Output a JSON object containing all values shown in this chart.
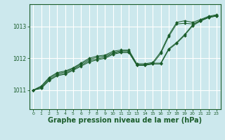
{
  "background_color": "#cce8ed",
  "grid_color": "#ffffff",
  "line_color": "#1a5c2a",
  "marker_color": "#1a5c2a",
  "xlabel": "Graphe pression niveau de la mer (hPa)",
  "xlabel_fontsize": 7,
  "xlim": [
    -0.5,
    23.5
  ],
  "ylim": [
    1010.4,
    1013.7
  ],
  "yticks": [
    1011,
    1012,
    1013
  ],
  "xticks": [
    0,
    1,
    2,
    3,
    4,
    5,
    6,
    7,
    8,
    9,
    10,
    11,
    12,
    13,
    14,
    15,
    16,
    17,
    18,
    19,
    20,
    21,
    22,
    23
  ],
  "series": [
    [
      1011.0,
      1011.05,
      1011.3,
      1011.45,
      1011.5,
      1011.62,
      1011.75,
      1011.88,
      1011.95,
      1012.0,
      1012.12,
      1012.18,
      1012.18,
      1011.78,
      1011.78,
      1011.82,
      1011.82,
      1012.27,
      1012.47,
      1012.72,
      1013.02,
      1013.17,
      1013.28,
      1013.33
    ],
    [
      1011.0,
      1011.08,
      1011.33,
      1011.48,
      1011.53,
      1011.65,
      1011.78,
      1011.92,
      1011.98,
      1012.03,
      1012.15,
      1012.2,
      1012.2,
      1011.8,
      1011.8,
      1011.85,
      1011.85,
      1012.3,
      1012.5,
      1012.75,
      1013.05,
      1013.2,
      1013.3,
      1013.35
    ],
    [
      1011.0,
      1011.1,
      1011.37,
      1011.52,
      1011.57,
      1011.68,
      1011.82,
      1011.96,
      1012.03,
      1012.07,
      1012.18,
      1012.23,
      1012.23,
      1011.78,
      1011.78,
      1011.83,
      1012.15,
      1012.68,
      1013.08,
      1013.1,
      1013.08,
      1013.18,
      1013.28,
      1013.33
    ],
    [
      1011.0,
      1011.13,
      1011.4,
      1011.55,
      1011.6,
      1011.7,
      1011.85,
      1012.0,
      1012.07,
      1012.1,
      1012.22,
      1012.26,
      1012.26,
      1011.83,
      1011.83,
      1011.87,
      1012.2,
      1012.73,
      1013.13,
      1013.18,
      1013.13,
      1013.22,
      1013.32,
      1013.37
    ]
  ]
}
